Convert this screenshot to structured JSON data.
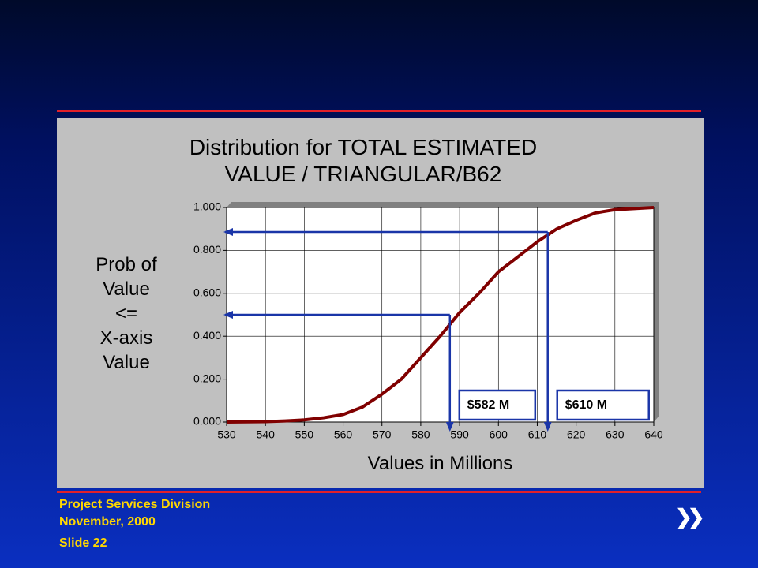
{
  "chart_data": {
    "type": "line",
    "title": "Distribution for TOTAL ESTIMATED\nVALUE / TRIANGULAR/B62",
    "x_label": "Values in Millions",
    "y_label": "Prob of\nValue\n<=\nX-axis\nValue",
    "x": [
      530,
      535,
      540,
      545,
      550,
      555,
      560,
      565,
      570,
      575,
      580,
      585,
      590,
      595,
      600,
      605,
      610,
      615,
      620,
      625,
      630,
      635,
      640
    ],
    "series": [
      {
        "name": "Distribution",
        "color": "#800000",
        "values": [
          0,
          0.001,
          0.002,
          0.005,
          0.01,
          0.02,
          0.035,
          0.07,
          0.13,
          0.2,
          0.3,
          0.4,
          0.51,
          0.6,
          0.7,
          0.77,
          0.84,
          0.9,
          0.94,
          0.975,
          0.99,
          0.995,
          1.0
        ]
      }
    ],
    "xlim": [
      530,
      640
    ],
    "xticks": [
      530,
      540,
      550,
      560,
      570,
      580,
      590,
      600,
      610,
      620,
      630,
      640
    ],
    "ylim": [
      0,
      1
    ],
    "yticks": [
      {
        "value": 0,
        "label": "0.000"
      },
      {
        "value": 0.2,
        "label": "0.200"
      },
      {
        "value": 0.4,
        "label": "0.400"
      },
      {
        "value": 0.6,
        "label": "0.600"
      },
      {
        "value": 0.8,
        "label": "0.800"
      },
      {
        "value": 1,
        "label": "1.000"
      }
    ],
    "grid": true,
    "annotations": [
      {
        "label": "$582 M",
        "x": 587.5,
        "y": 0.5
      },
      {
        "label": "$610 M",
        "x": 612.7,
        "y": 0.886
      }
    ],
    "annotation_color": "#1a35a8"
  },
  "footer": {
    "division": "Project Services Division",
    "date": "November, 2000",
    "slide": "Slide 22"
  }
}
